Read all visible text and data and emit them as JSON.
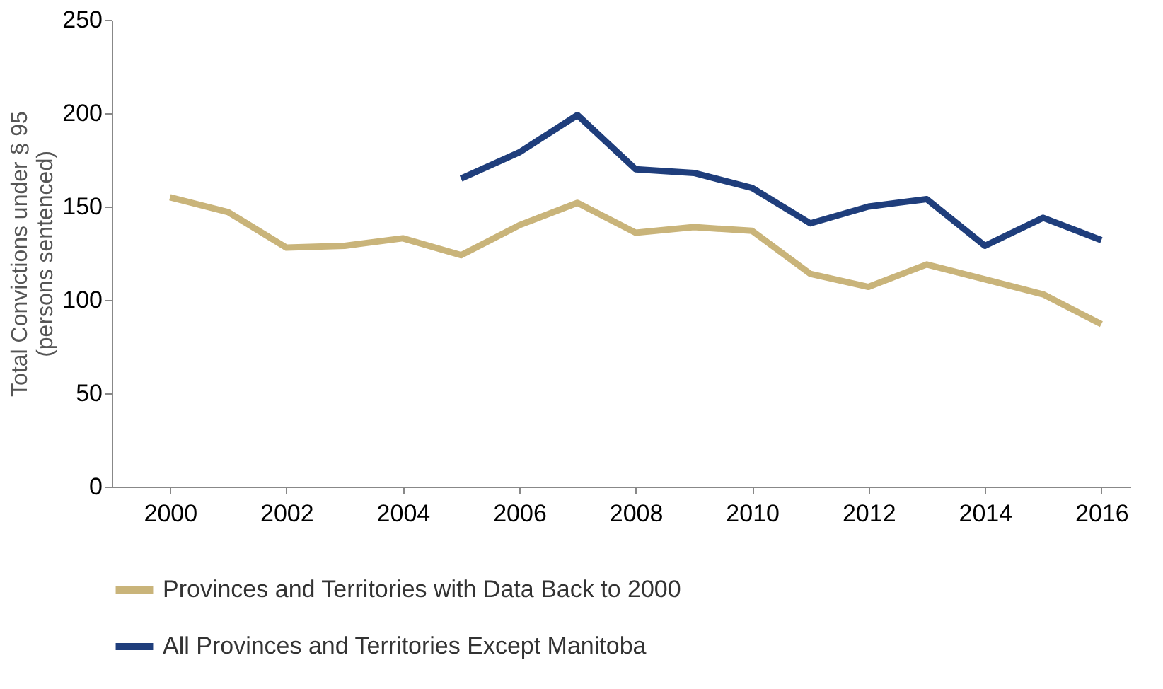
{
  "chart_data": {
    "type": "line",
    "ylabel": "Total Convictions under § 95\n(persons sentenced)",
    "x": [
      2000,
      2001,
      2002,
      2003,
      2004,
      2005,
      2006,
      2007,
      2008,
      2009,
      2010,
      2011,
      2012,
      2013,
      2014,
      2015,
      2016
    ],
    "series": [
      {
        "name": "Provinces and Territories with Data Back to 2000",
        "color": "#c9b47a",
        "values": [
          155,
          147,
          128,
          129,
          133,
          124,
          140,
          152,
          136,
          139,
          137,
          114,
          107,
          119,
          111,
          103,
          87
        ]
      },
      {
        "name": "All Provinces and Territories Except Manitoba",
        "color": "#1f3e7c",
        "values": [
          null,
          null,
          null,
          null,
          null,
          165,
          179,
          199,
          170,
          168,
          160,
          141,
          150,
          154,
          129,
          144,
          132
        ]
      }
    ],
    "xlim": [
      1999,
      2016.5
    ],
    "xticks": [
      2000,
      2002,
      2004,
      2006,
      2008,
      2010,
      2012,
      2014,
      2016
    ],
    "ylim": [
      0,
      250
    ],
    "yticks": [
      0,
      50,
      100,
      150,
      200,
      250
    ],
    "grid": false,
    "legend": "bottom",
    "marker": "none",
    "line_style": "solid"
  }
}
